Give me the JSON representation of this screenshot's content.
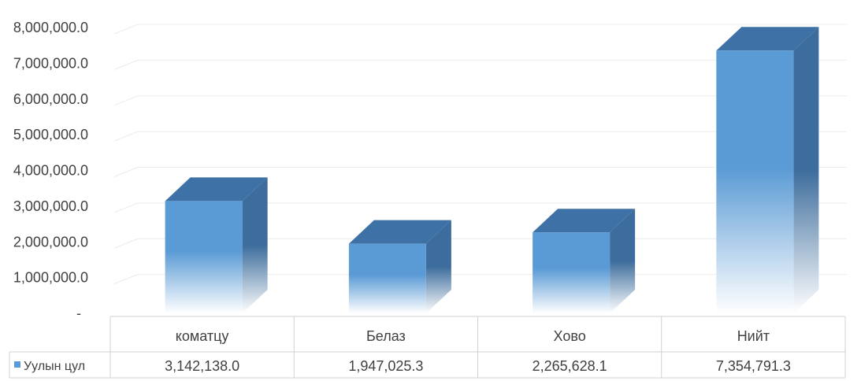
{
  "chart_data": {
    "type": "bar",
    "categories": [
      "коматцу",
      "Белаз",
      "Хово",
      "Нийт"
    ],
    "series": [
      {
        "name": "Уулын цул",
        "values": [
          3142138.0,
          1947025.3,
          2265628.1,
          7354791.3
        ],
        "value_labels": [
          "3,142,138.0",
          "1,947,025.3",
          "2,265,628.1",
          "7,354,791.3"
        ],
        "color": "#5b9bd5"
      }
    ],
    "ylim": [
      0,
      8000000
    ],
    "yticks": [
      {
        "value": 0,
        "label": "-"
      },
      {
        "value": 1000000,
        "label": "1,000,000.0"
      },
      {
        "value": 2000000,
        "label": "2,000,000.0"
      },
      {
        "value": 3000000,
        "label": "3,000,000.0"
      },
      {
        "value": 4000000,
        "label": "4,000,000.0"
      },
      {
        "value": 5000000,
        "label": "5,000,000.0"
      },
      {
        "value": 6000000,
        "label": "6,000,000.0"
      },
      {
        "value": 7000000,
        "label": "7,000,000.0"
      },
      {
        "value": 8000000,
        "label": "8,000,000.0"
      }
    ],
    "grid": true,
    "data_table": true,
    "style": "3d-column"
  }
}
